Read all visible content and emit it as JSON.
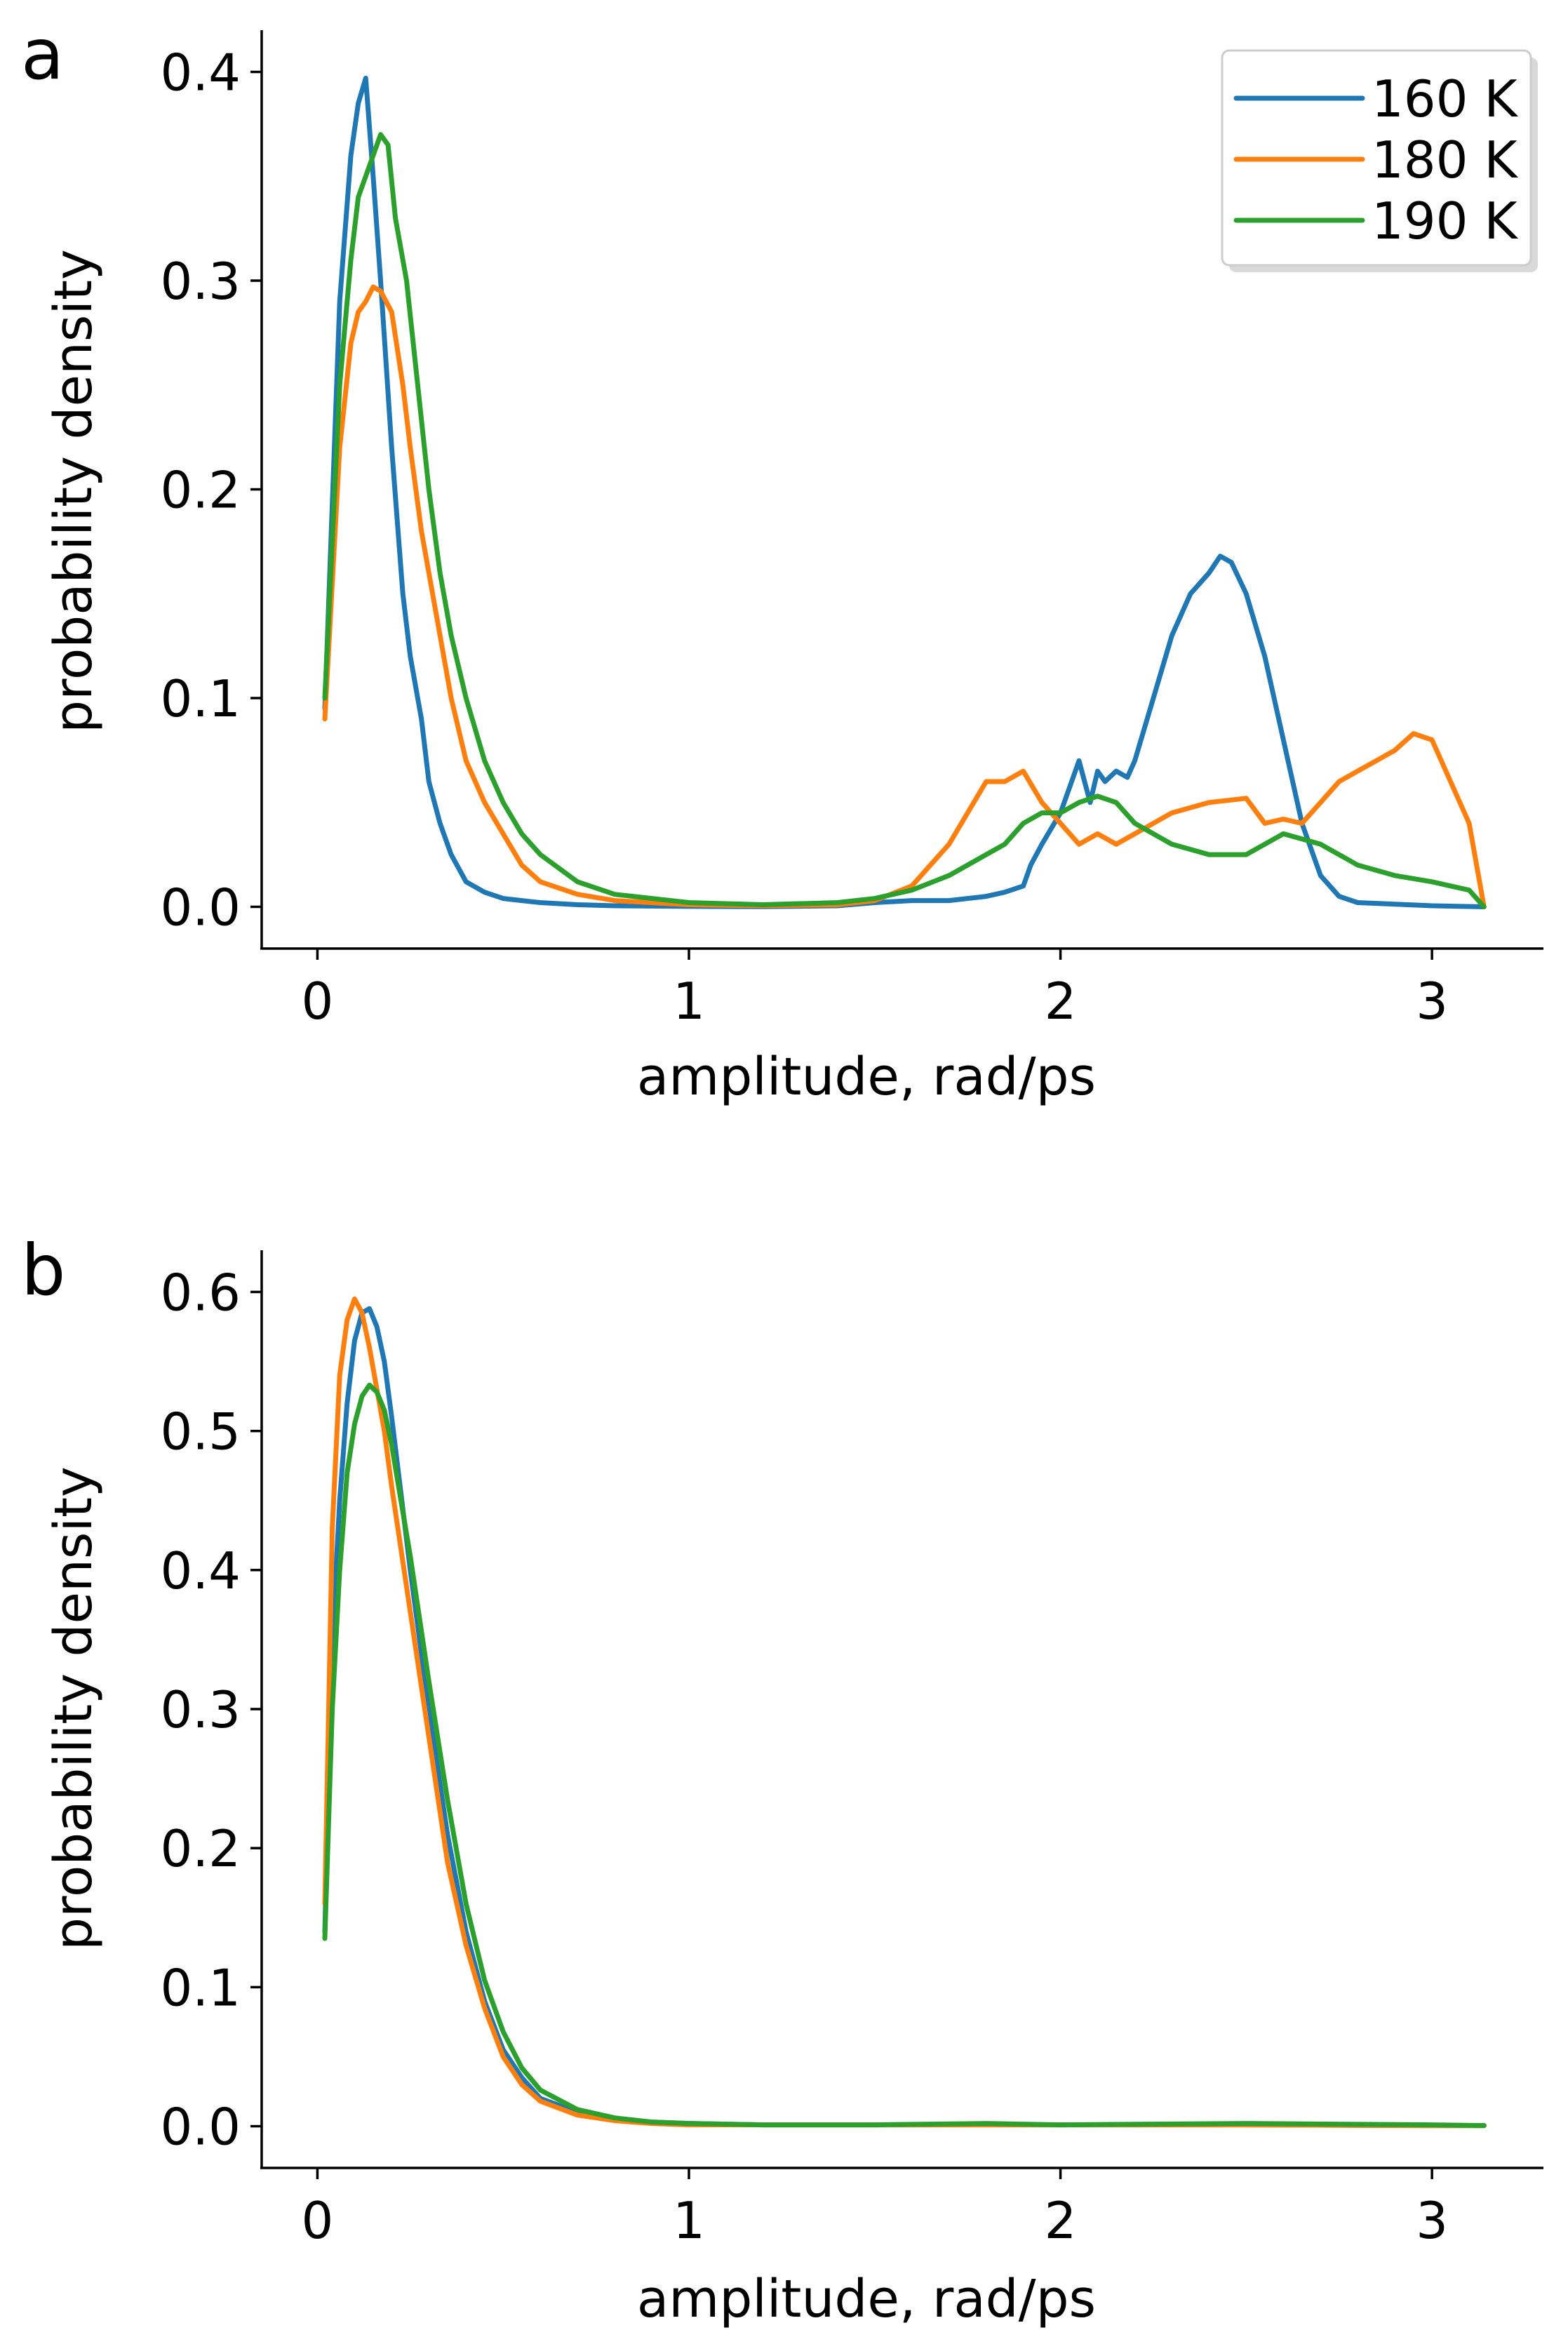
{
  "colors": {
    "series_160K": "#1f77b4",
    "series_180K": "#ff7f0e",
    "series_190K": "#2ca02c"
  },
  "chart_data": [
    {
      "type": "line",
      "panel_label": "a",
      "title": "",
      "xlabel": "amplitude, rad/ps",
      "ylabel": "probability density",
      "xlim": [
        -0.15,
        3.3
      ],
      "ylim": [
        -0.02,
        0.42
      ],
      "xticks": [
        0,
        1,
        2,
        3
      ],
      "xtick_labels": [
        "0",
        "1",
        "2",
        "3"
      ],
      "yticks": [
        0.0,
        0.1,
        0.2,
        0.3,
        0.4
      ],
      "ytick_labels": [
        "0.0",
        "0.1",
        "0.2",
        "0.3",
        "0.4"
      ],
      "grid": false,
      "legend_position": "top-right",
      "series": [
        {
          "name": "160 K",
          "color_key": "series_160K",
          "x": [
            0.02,
            0.06,
            0.09,
            0.11,
            0.13,
            0.15,
            0.17,
            0.2,
            0.23,
            0.25,
            0.28,
            0.3,
            0.33,
            0.36,
            0.4,
            0.45,
            0.5,
            0.55,
            0.6,
            0.7,
            0.8,
            1.0,
            1.2,
            1.4,
            1.5,
            1.6,
            1.7,
            1.8,
            1.85,
            1.9,
            1.92,
            1.95,
            2.0,
            2.03,
            2.05,
            2.08,
            2.1,
            2.12,
            2.15,
            2.18,
            2.2,
            2.25,
            2.3,
            2.35,
            2.4,
            2.43,
            2.46,
            2.5,
            2.55,
            2.6,
            2.65,
            2.7,
            2.75,
            2.8,
            3.0,
            3.14
          ],
          "y": [
            0.095,
            0.29,
            0.36,
            0.385,
            0.397,
            0.35,
            0.3,
            0.22,
            0.15,
            0.12,
            0.09,
            0.06,
            0.04,
            0.025,
            0.012,
            0.007,
            0.004,
            0.003,
            0.002,
            0.001,
            0.0005,
            0.0002,
            0.0001,
            0.0005,
            0.002,
            0.003,
            0.003,
            0.005,
            0.007,
            0.01,
            0.02,
            0.03,
            0.045,
            0.06,
            0.07,
            0.05,
            0.065,
            0.06,
            0.065,
            0.062,
            0.07,
            0.1,
            0.13,
            0.15,
            0.16,
            0.168,
            0.165,
            0.15,
            0.12,
            0.08,
            0.04,
            0.015,
            0.005,
            0.002,
            0.0005,
            0.0
          ]
        },
        {
          "name": "180 K",
          "color_key": "series_180K",
          "x": [
            0.02,
            0.06,
            0.09,
            0.11,
            0.13,
            0.15,
            0.17,
            0.2,
            0.23,
            0.25,
            0.28,
            0.3,
            0.33,
            0.36,
            0.4,
            0.45,
            0.5,
            0.55,
            0.6,
            0.7,
            0.8,
            1.0,
            1.2,
            1.4,
            1.5,
            1.6,
            1.65,
            1.7,
            1.75,
            1.8,
            1.85,
            1.9,
            1.95,
            2.0,
            2.05,
            2.1,
            2.15,
            2.2,
            2.3,
            2.4,
            2.5,
            2.55,
            2.6,
            2.65,
            2.7,
            2.75,
            2.8,
            2.85,
            2.9,
            2.95,
            3.0,
            3.05,
            3.1,
            3.14
          ],
          "y": [
            0.09,
            0.22,
            0.27,
            0.285,
            0.29,
            0.297,
            0.295,
            0.285,
            0.25,
            0.22,
            0.18,
            0.16,
            0.13,
            0.1,
            0.07,
            0.05,
            0.035,
            0.02,
            0.012,
            0.006,
            0.003,
            0.001,
            0.0005,
            0.001,
            0.003,
            0.01,
            0.02,
            0.03,
            0.045,
            0.06,
            0.06,
            0.065,
            0.05,
            0.04,
            0.03,
            0.035,
            0.03,
            0.035,
            0.045,
            0.05,
            0.052,
            0.04,
            0.042,
            0.04,
            0.05,
            0.06,
            0.065,
            0.07,
            0.075,
            0.083,
            0.08,
            0.06,
            0.04,
            0.0
          ]
        },
        {
          "name": "190 K",
          "color_key": "series_190K",
          "x": [
            0.02,
            0.06,
            0.09,
            0.11,
            0.13,
            0.15,
            0.17,
            0.19,
            0.21,
            0.24,
            0.27,
            0.3,
            0.33,
            0.36,
            0.4,
            0.45,
            0.5,
            0.55,
            0.6,
            0.7,
            0.8,
            1.0,
            1.2,
            1.4,
            1.5,
            1.6,
            1.7,
            1.8,
            1.85,
            1.9,
            1.95,
            2.0,
            2.05,
            2.1,
            2.15,
            2.2,
            2.3,
            2.4,
            2.5,
            2.6,
            2.7,
            2.8,
            2.9,
            3.0,
            3.05,
            3.1,
            3.14
          ],
          "y": [
            0.1,
            0.25,
            0.31,
            0.34,
            0.35,
            0.36,
            0.37,
            0.365,
            0.33,
            0.3,
            0.25,
            0.2,
            0.16,
            0.13,
            0.1,
            0.07,
            0.05,
            0.035,
            0.025,
            0.012,
            0.006,
            0.002,
            0.001,
            0.002,
            0.004,
            0.008,
            0.015,
            0.025,
            0.03,
            0.04,
            0.045,
            0.045,
            0.05,
            0.053,
            0.05,
            0.04,
            0.03,
            0.025,
            0.025,
            0.035,
            0.03,
            0.02,
            0.015,
            0.012,
            0.01,
            0.008,
            0.0
          ]
        }
      ]
    },
    {
      "type": "line",
      "panel_label": "b",
      "title": "",
      "xlabel": "amplitude, rad/ps",
      "ylabel": "probability density",
      "xlim": [
        -0.15,
        3.3
      ],
      "ylim": [
        -0.03,
        0.63
      ],
      "xticks": [
        0,
        1,
        2,
        3
      ],
      "xtick_labels": [
        "0",
        "1",
        "2",
        "3"
      ],
      "yticks": [
        0.0,
        0.1,
        0.2,
        0.3,
        0.4,
        0.5,
        0.6
      ],
      "ytick_labels": [
        "0.0",
        "0.1",
        "0.2",
        "0.3",
        "0.4",
        "0.5",
        "0.6"
      ],
      "grid": false,
      "series": [
        {
          "name": "160 K",
          "color_key": "series_160K",
          "x": [
            0.02,
            0.04,
            0.06,
            0.08,
            0.1,
            0.12,
            0.14,
            0.16,
            0.18,
            0.2,
            0.25,
            0.3,
            0.35,
            0.4,
            0.45,
            0.5,
            0.55,
            0.6,
            0.7,
            0.8,
            0.9,
            1.0,
            1.2,
            1.5,
            1.8,
            2.0,
            2.5,
            3.0,
            3.14
          ],
          "y": [
            0.14,
            0.35,
            0.45,
            0.52,
            0.565,
            0.585,
            0.588,
            0.575,
            0.55,
            0.51,
            0.4,
            0.3,
            0.21,
            0.14,
            0.09,
            0.055,
            0.035,
            0.02,
            0.01,
            0.005,
            0.003,
            0.002,
            0.001,
            0.001,
            0.001,
            0.001,
            0.001,
            0.0005,
            0.0005
          ]
        },
        {
          "name": "180 K",
          "color_key": "series_180K",
          "x": [
            0.02,
            0.04,
            0.06,
            0.08,
            0.1,
            0.12,
            0.14,
            0.16,
            0.18,
            0.2,
            0.25,
            0.3,
            0.35,
            0.4,
            0.45,
            0.5,
            0.55,
            0.6,
            0.7,
            0.8,
            0.9,
            1.0,
            1.2,
            1.5,
            1.8,
            2.0,
            2.5,
            3.0,
            3.14
          ],
          "y": [
            0.16,
            0.43,
            0.54,
            0.58,
            0.595,
            0.585,
            0.56,
            0.53,
            0.5,
            0.46,
            0.37,
            0.28,
            0.19,
            0.13,
            0.085,
            0.05,
            0.03,
            0.018,
            0.008,
            0.004,
            0.002,
            0.001,
            0.001,
            0.001,
            0.001,
            0.001,
            0.001,
            0.0005,
            0.0005
          ]
        },
        {
          "name": "190 K",
          "color_key": "series_190K",
          "x": [
            0.02,
            0.04,
            0.06,
            0.08,
            0.1,
            0.12,
            0.14,
            0.16,
            0.18,
            0.2,
            0.25,
            0.3,
            0.35,
            0.4,
            0.45,
            0.5,
            0.55,
            0.6,
            0.7,
            0.8,
            0.9,
            1.0,
            1.2,
            1.5,
            1.8,
            2.0,
            2.5,
            3.0,
            3.14
          ],
          "y": [
            0.135,
            0.3,
            0.4,
            0.47,
            0.505,
            0.525,
            0.533,
            0.528,
            0.515,
            0.49,
            0.41,
            0.32,
            0.235,
            0.16,
            0.105,
            0.068,
            0.042,
            0.026,
            0.012,
            0.006,
            0.003,
            0.002,
            0.001,
            0.001,
            0.002,
            0.001,
            0.002,
            0.001,
            0.0005
          ]
        }
      ]
    }
  ]
}
